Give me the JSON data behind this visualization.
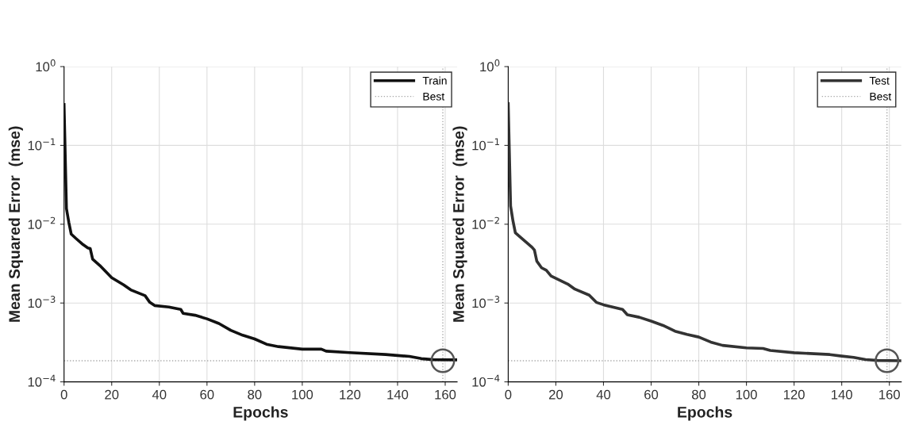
{
  "chart_data": [
    {
      "type": "line",
      "xlabel": "Epochs",
      "ylabel": "Mean Squared Error  (mse)",
      "log": "y",
      "grid": true,
      "legend": "top right",
      "line_style": "solid",
      "marker": "none",
      "xlim": [
        0,
        165
      ],
      "xticks": [
        0,
        20,
        40,
        60,
        80,
        100,
        120,
        140,
        160
      ],
      "ylim": [
        0.0001,
        1
      ],
      "yticks": [
        {
          "value": 0.0001,
          "label": "10$^{−4}$"
        },
        {
          "value": 0.001,
          "label": "10$^{−3}$"
        },
        {
          "value": 0.01,
          "label": "10$^{−2}$"
        },
        {
          "value": 0.1,
          "label": "10$^{−1}$"
        },
        {
          "value": 1,
          "label": "10$^{0}$"
        }
      ],
      "series": [
        {
          "name": "Train",
          "color": "#111111",
          "x": [
            0,
            1,
            2,
            3,
            5,
            8,
            10,
            11,
            12,
            15,
            20,
            25,
            28,
            34,
            36,
            38,
            44,
            49,
            50,
            55,
            60,
            65,
            70,
            75,
            80,
            85,
            90,
            100,
            108,
            110,
            120,
            135,
            140,
            145,
            150,
            155,
            165
          ],
          "values": [
            0.33,
            0.0158,
            0.0106,
            0.0075,
            0.0066,
            0.0055,
            0.005,
            0.0049,
            0.0036,
            0.003,
            0.0021,
            0.0017,
            0.00147,
            0.00124,
            0.00102,
            0.00093,
            0.00089,
            0.00083,
            0.00074,
            0.0007,
            0.00063,
            0.00055,
            0.00045,
            0.00039,
            0.00035,
            0.0003,
            0.00028,
            0.00026,
            0.00026,
            0.000245,
            0.000235,
            0.000222,
            0.000216,
            0.00021,
            0.000197,
            0.000191,
            0.00019
          ]
        },
        {
          "type": "scatter",
          "marker": "circle",
          "color": "#555555",
          "x": [
            159
          ],
          "values": [
            0.000185
          ]
        }
      ],
      "ref_lines": [
        {
          "axis": "x",
          "value": 159,
          "label": "Best",
          "color": "#aaaaaa",
          "line_style": "dotted"
        },
        {
          "axis": "y",
          "value": 0.000185,
          "color": "#aaaaaa",
          "line_style": "dotted"
        }
      ]
    },
    {
      "type": "line",
      "xlabel": "Epochs",
      "ylabel": "Mean Squared Error  (mse)",
      "log": "y",
      "grid": true,
      "legend": "top right",
      "line_style": "solid",
      "marker": "none",
      "xlim": [
        0,
        165
      ],
      "xticks": [
        0,
        20,
        40,
        60,
        80,
        100,
        120,
        140,
        160
      ],
      "ylim": [
        0.0001,
        1
      ],
      "yticks": [
        {
          "value": 0.0001,
          "label": "10$^{−4}$"
        },
        {
          "value": 0.001,
          "label": "10$^{−3}$"
        },
        {
          "value": 0.01,
          "label": "10$^{−2}$"
        },
        {
          "value": 0.1,
          "label": "10$^{−1}$"
        },
        {
          "value": 1,
          "label": "10$^{0}$"
        }
      ],
      "series": [
        {
          "name": "Test",
          "color": "#333333",
          "x": [
            0,
            1,
            2,
            3,
            5,
            10,
            11,
            12,
            14,
            16,
            18,
            25,
            28,
            34,
            37,
            40,
            48,
            50,
            55,
            60,
            65,
            70,
            75,
            80,
            85,
            90,
            100,
            107,
            110,
            120,
            135,
            140,
            145,
            150,
            155,
            165
          ],
          "values": [
            0.34,
            0.017,
            0.011,
            0.0078,
            0.0069,
            0.0051,
            0.0047,
            0.0034,
            0.0028,
            0.0026,
            0.0022,
            0.00174,
            0.0015,
            0.00126,
            0.00102,
            0.00095,
            0.00083,
            0.00071,
            0.00066,
            0.00059,
            0.00052,
            0.00044,
            0.0004,
            0.00037,
            0.00032,
            0.00029,
            0.00027,
            0.000265,
            0.00025,
            0.000234,
            0.000222,
            0.000212,
            0.000204,
            0.000192,
            0.000187,
            0.000185
          ]
        },
        {
          "type": "scatter",
          "marker": "circle",
          "color": "#555555",
          "x": [
            159
          ],
          "values": [
            0.000185
          ]
        }
      ],
      "ref_lines": [
        {
          "axis": "x",
          "value": 159,
          "label": "Best",
          "color": "#aaaaaa",
          "line_style": "dotted"
        },
        {
          "axis": "y",
          "value": 0.000185,
          "color": "#aaaaaa",
          "line_style": "dotted"
        }
      ]
    }
  ]
}
